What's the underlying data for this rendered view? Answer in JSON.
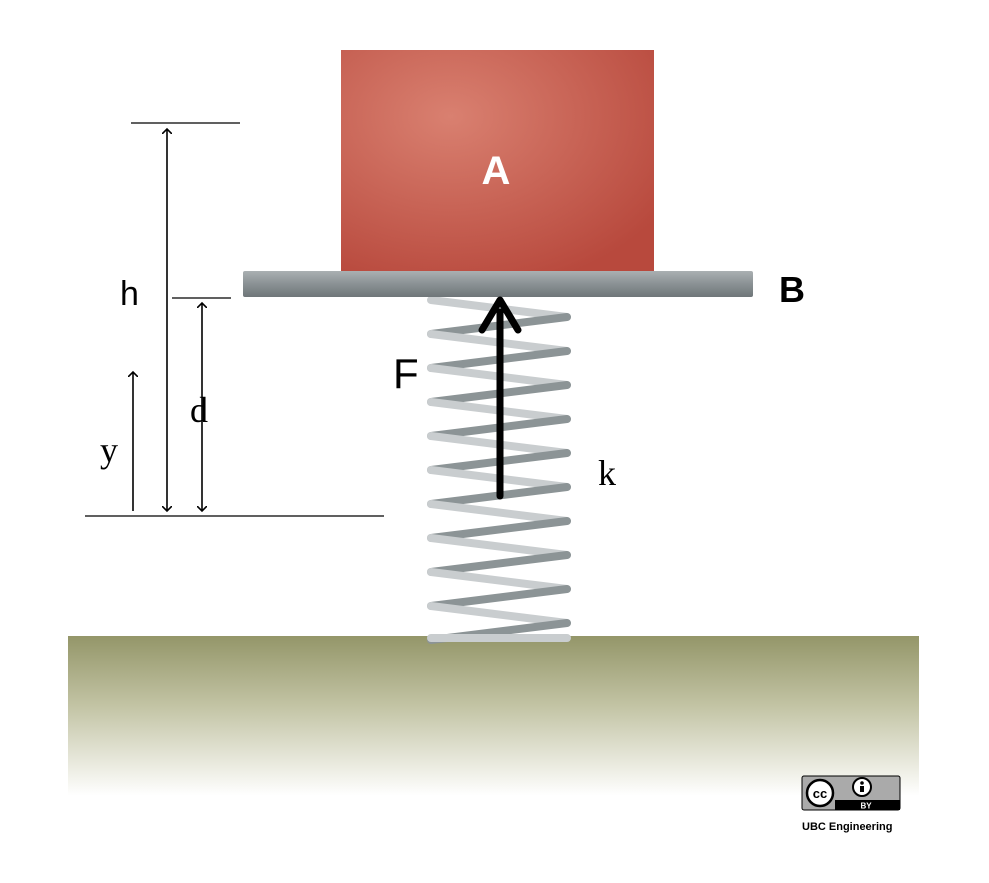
{
  "labels": {
    "block": "A",
    "plate": "B",
    "force": "F",
    "spring": "k",
    "height": "h",
    "displacement": "d",
    "position": "y"
  },
  "license": {
    "badge_cc": "cc",
    "badge_by": "BY",
    "credit": "UBC Engineering"
  },
  "colors": {
    "block": "#c45a4c",
    "block_light": "#d98a78",
    "plate": "#8e9598",
    "spring_light": "#c9cdcf",
    "spring_dark": "#8c9496",
    "ground_top": "#97996e",
    "arrow": "#000000"
  }
}
